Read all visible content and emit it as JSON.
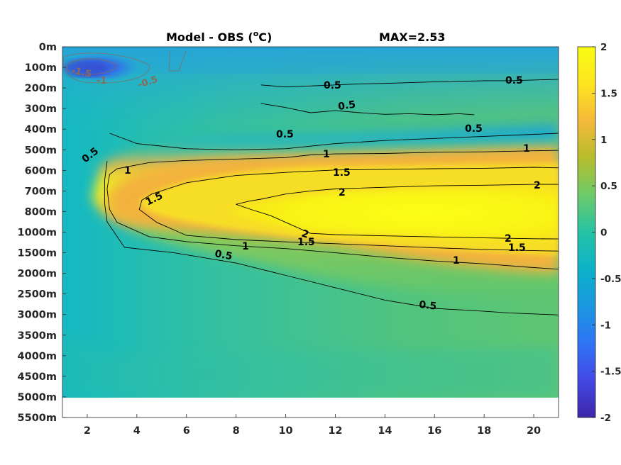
{
  "chart_data": {
    "type": "heatmap",
    "title": "Model - OBS (°C)",
    "title_parts": {
      "main": "Model - OBS (",
      "sup": "o",
      "unit": "C)"
    },
    "max_label": "MAX=2.53",
    "x_ticks": [
      "2",
      "4",
      "6",
      "8",
      "10",
      "12",
      "14",
      "16",
      "18",
      "20"
    ],
    "x_tick_values": [
      2,
      4,
      6,
      8,
      10,
      12,
      14,
      16,
      18,
      20
    ],
    "xlim": [
      1,
      21
    ],
    "y_ticks": [
      "0m",
      "100m",
      "200m",
      "300m",
      "400m",
      "500m",
      "600m",
      "700m",
      "800m",
      "1000m",
      "1500m",
      "2000m",
      "2500m",
      "3000m",
      "3500m",
      "4000m",
      "4500m",
      "5000m",
      "5500m"
    ],
    "colorbar": {
      "range": [
        -2,
        2
      ],
      "ticks": [
        "2",
        "1.5",
        "1",
        "0.5",
        "0",
        "-0.5",
        "-1",
        "-1.5",
        "-2"
      ],
      "tick_values": [
        2,
        1.5,
        1,
        0.5,
        0,
        -0.5,
        -1,
        -1.5,
        -2
      ],
      "colormap": [
        "#3e26a8",
        "#4348e4",
        "#2f74f5",
        "#1b97e0",
        "#0cb3c9",
        "#26c2a6",
        "#6ccb69",
        "#b7bd2d",
        "#f5b93a",
        "#fde51f",
        "#f9fb14"
      ]
    },
    "contour_levels": [
      -1.5,
      -1,
      -0.5,
      0.5,
      1,
      1.5,
      2
    ],
    "contour_labels": [
      "-1.5",
      "-1",
      "-0.5",
      "0.5",
      "0.5",
      "0.5",
      "0.5",
      "0.5",
      "0.5",
      "1",
      "1",
      "1",
      "1",
      "1.5",
      "1.5",
      "1.5",
      "1.5",
      "2",
      "2",
      "2",
      "0.5",
      "0.5",
      "0.5"
    ],
    "contour_lines": [
      {
        "level": 0.5,
        "points": [
          [
            2.9,
            420
          ],
          [
            4,
            470
          ],
          [
            6,
            495
          ],
          [
            8,
            500
          ],
          [
            10,
            495
          ],
          [
            12,
            470
          ],
          [
            14,
            455
          ],
          [
            16,
            445
          ],
          [
            18,
            435
          ],
          [
            20,
            425
          ],
          [
            21,
            420
          ]
        ]
      },
      {
        "level": 0.5,
        "points": [
          [
            2.8,
            555
          ],
          [
            2.7,
            650
          ],
          [
            2.7,
            760
          ],
          [
            2.8,
            900
          ],
          [
            3.5,
            1370
          ],
          [
            5.5,
            1500
          ],
          [
            8,
            1750
          ],
          [
            10,
            2050
          ],
          [
            12,
            2350
          ],
          [
            14,
            2650
          ],
          [
            16,
            2850
          ],
          [
            18,
            2920
          ],
          [
            19,
            2960
          ],
          [
            21,
            3010
          ]
        ]
      },
      {
        "level": 0.5,
        "points": [
          [
            9,
            185
          ],
          [
            10,
            195
          ],
          [
            12,
            185
          ],
          [
            13,
            180
          ],
          [
            14,
            178
          ],
          [
            16,
            170
          ],
          [
            18,
            165
          ],
          [
            19,
            165
          ],
          [
            21,
            158
          ]
        ]
      },
      {
        "level": 0.5,
        "points": [
          [
            9,
            275
          ],
          [
            10,
            295
          ],
          [
            11,
            320
          ],
          [
            12,
            310
          ],
          [
            13,
            320
          ],
          [
            14,
            328
          ],
          [
            15,
            325
          ],
          [
            16,
            330
          ],
          [
            17,
            325
          ],
          [
            17.6,
            330
          ]
        ]
      },
      {
        "level": 1,
        "points": [
          [
            2.9,
            620
          ],
          [
            3.2,
            592
          ],
          [
            4.5,
            562
          ],
          [
            6,
            552
          ],
          [
            8,
            545
          ],
          [
            10,
            538
          ],
          [
            11,
            525
          ],
          [
            12,
            520
          ],
          [
            14,
            518
          ],
          [
            16,
            512
          ],
          [
            18,
            510
          ],
          [
            20,
            505
          ],
          [
            21,
            503
          ]
        ]
      },
      {
        "level": 1,
        "points": [
          [
            2.9,
            620
          ],
          [
            2.8,
            690
          ],
          [
            2.9,
            790
          ],
          [
            3.2,
            905
          ],
          [
            4.5,
            1110
          ],
          [
            6,
            1230
          ],
          [
            8,
            1330
          ],
          [
            10,
            1400
          ],
          [
            12,
            1500
          ],
          [
            14,
            1610
          ],
          [
            16,
            1700
          ],
          [
            18,
            1770
          ],
          [
            20,
            1860
          ],
          [
            21,
            1900
          ]
        ]
      },
      {
        "level": 1.5,
        "points": [
          [
            4.2,
            745
          ],
          [
            4.6,
            715
          ],
          [
            6,
            660
          ],
          [
            8,
            625
          ],
          [
            10,
            610
          ],
          [
            12,
            598
          ],
          [
            14,
            595
          ],
          [
            16,
            592
          ],
          [
            18,
            590
          ],
          [
            20,
            585
          ],
          [
            21,
            588
          ]
        ]
      },
      {
        "level": 1.5,
        "points": [
          [
            4.2,
            745
          ],
          [
            4.1,
            790
          ],
          [
            4.8,
            905
          ],
          [
            6,
            1080
          ],
          [
            8,
            1180
          ],
          [
            10,
            1235
          ],
          [
            12,
            1280
          ],
          [
            14,
            1330
          ],
          [
            16,
            1380
          ],
          [
            18,
            1420
          ],
          [
            20,
            1450
          ],
          [
            21,
            1460
          ]
        ]
      },
      {
        "level": 2,
        "points": [
          [
            8,
            765
          ],
          [
            8.5,
            750
          ],
          [
            9,
            740
          ],
          [
            10,
            715
          ],
          [
            11,
            700
          ],
          [
            12,
            690
          ],
          [
            14,
            682
          ],
          [
            16,
            675
          ],
          [
            18,
            672
          ],
          [
            20,
            668
          ],
          [
            21,
            668
          ]
        ]
      },
      {
        "level": 2,
        "points": [
          [
            8,
            765
          ],
          [
            8.6,
            790
          ],
          [
            9.4,
            840
          ],
          [
            10,
            905
          ],
          [
            11,
            1030
          ],
          [
            12,
            1060
          ],
          [
            14,
            1090
          ],
          [
            16,
            1115
          ],
          [
            18,
            1140
          ],
          [
            20,
            1160
          ],
          [
            21,
            1165
          ]
        ]
      }
    ]
  }
}
